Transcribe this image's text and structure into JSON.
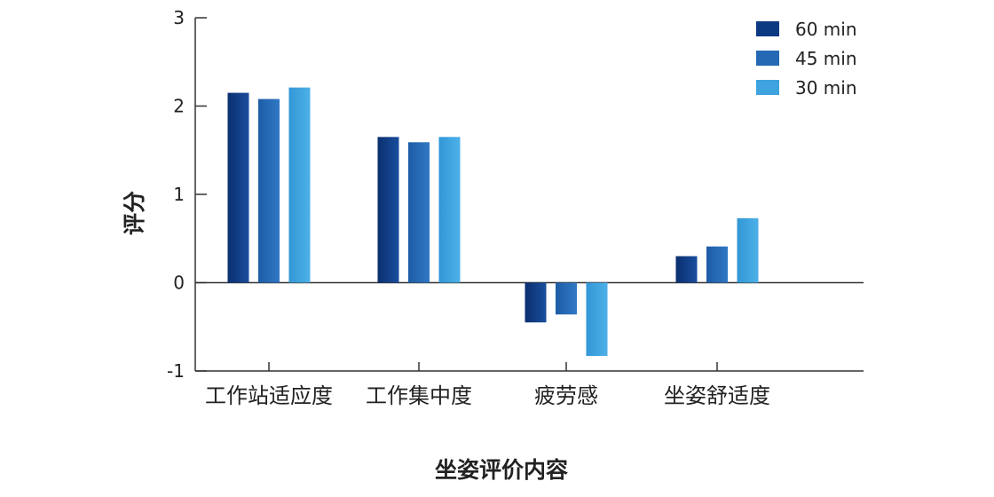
{
  "chart_data": {
    "type": "bar",
    "xlabel": "坐姿评价内容",
    "ylabel": "评分",
    "ylim": [
      -1,
      3
    ],
    "yticks": [
      3,
      2,
      1,
      0,
      -1
    ],
    "categories": [
      "工作站适应度",
      "工作集中度",
      "疲劳感",
      "坐姿舒适度"
    ],
    "series": [
      {
        "name": "60 min",
        "color": "#0c3a82",
        "values": [
          2.15,
          1.65,
          -0.45,
          0.3
        ]
      },
      {
        "name": "45 min",
        "color": "#2569b4",
        "values": [
          2.08,
          1.59,
          -0.36,
          0.41
        ]
      },
      {
        "name": "30 min",
        "color": "#3ea3df",
        "values": [
          2.21,
          1.65,
          -0.83,
          0.73
        ]
      }
    ],
    "legend_position": "top-right",
    "grid": false
  }
}
